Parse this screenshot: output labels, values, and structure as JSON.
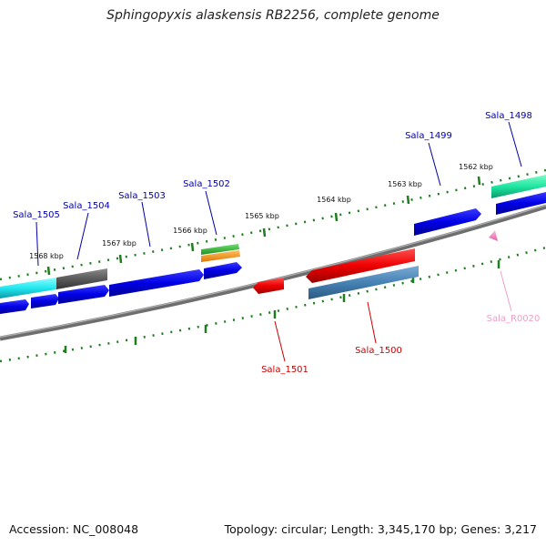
{
  "title": "Sphingopyxis alaskensis RB2256, complete genome",
  "footer": {
    "accession": "Accession: NC_008048",
    "topology": "Topology: circular; Length: 3,345,170 bp; Genes: 3,217"
  },
  "scale_labels": [
    "1568 kbp",
    "1567 kbp",
    "1566 kbp",
    "1565 kbp",
    "1564 kbp",
    "1563 kbp",
    "1562 kbp"
  ],
  "gene_labels": {
    "sala_1505": "Sala_1505",
    "sala_1504": "Sala_1504",
    "sala_1503": "Sala_1503",
    "sala_1502": "Sala_1502",
    "sala_1499": "Sala_1499",
    "sala_1498": "Sala_1498",
    "sala_1501": "Sala_1501",
    "sala_1500": "Sala_1500",
    "sala_r0020": "Sala_R0020"
  },
  "colors": {
    "backbone": "#808080",
    "tick": "#1e7d1e",
    "forward_label": "#0000aa",
    "reverse_label": "#cc0000",
    "rna_label": "#f0a0c8"
  }
}
